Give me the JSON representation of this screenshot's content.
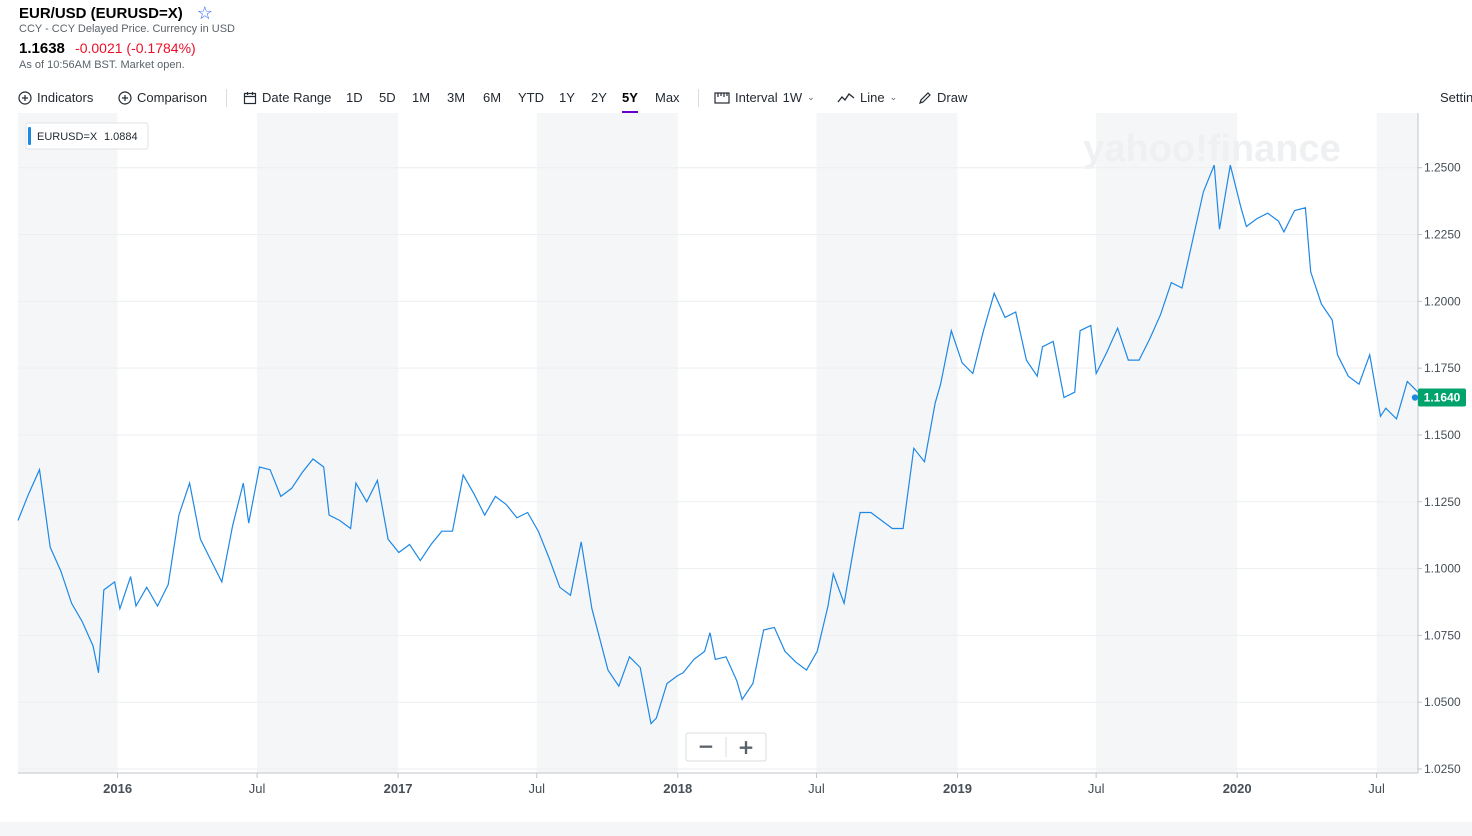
{
  "header": {
    "title": "EUR/USD (EURUSD=X)",
    "subtitle": "CCY - CCY Delayed Price. Currency in USD",
    "price": "1.1638",
    "change": "-0.0021 (-0.1784%)",
    "as_of": "As of 10:56AM BST. Market open."
  },
  "toolbar": {
    "indicators": "Indicators",
    "comparison": "Comparison",
    "date_range": "Date Range",
    "ranges": [
      "1D",
      "5D",
      "1M",
      "3M",
      "6M",
      "YTD",
      "1Y",
      "2Y",
      "5Y",
      "Max"
    ],
    "active_range": "5Y",
    "interval_label": "Interval",
    "interval_value": "1W",
    "chart_type": "Line",
    "draw": "Draw",
    "settings": "Settings"
  },
  "colors": {
    "line": "#1e88e5",
    "last_price": "#00a36c",
    "negative": "#eb0f29",
    "active_tab": "#6001d2"
  },
  "zoom": {
    "minus": "−",
    "plus": "+"
  },
  "chart_data": {
    "type": "line",
    "watermark": "yahoo!finance",
    "legend": {
      "symbol": "EURUSD=X",
      "value": "1.0884",
      "position": "top-left"
    },
    "last_label": "1.1640",
    "ylim": [
      1.025,
      1.26
    ],
    "y_ticks": [
      "1.2500",
      "1.2250",
      "1.2000",
      "1.1750",
      "1.1500",
      "1.1250",
      "1.1000",
      "1.0750",
      "1.0500",
      "1.0250"
    ],
    "x_labels": [
      "2016",
      "Jul",
      "2017",
      "Jul",
      "2018",
      "Jul",
      "2019",
      "Jul",
      "2020",
      "Jul"
    ],
    "x_start": "2015-08-24",
    "x_end": "2020-08-24",
    "grid": true,
    "series": [
      {
        "values": [
          [
            "2015-08-24",
            1.118
          ],
          [
            "2015-09-07",
            1.128
          ],
          [
            "2015-09-21",
            1.137
          ],
          [
            "2015-10-05",
            1.108
          ],
          [
            "2015-10-19",
            1.099
          ],
          [
            "2015-11-02",
            1.087
          ],
          [
            "2015-11-16",
            1.08
          ],
          [
            "2015-11-30",
            1.071
          ],
          [
            "2015-12-07",
            1.061
          ],
          [
            "2015-12-14",
            1.092
          ],
          [
            "2015-12-28",
            1.095
          ],
          [
            "2016-01-04",
            1.085
          ],
          [
            "2016-01-18",
            1.097
          ],
          [
            "2016-01-25",
            1.086
          ],
          [
            "2016-02-08",
            1.093
          ],
          [
            "2016-02-22",
            1.086
          ],
          [
            "2016-03-07",
            1.094
          ],
          [
            "2016-03-21",
            1.12
          ],
          [
            "2016-04-04",
            1.132
          ],
          [
            "2016-04-18",
            1.111
          ],
          [
            "2016-05-02",
            1.103
          ],
          [
            "2016-05-16",
            1.095
          ],
          [
            "2016-05-30",
            1.116
          ],
          [
            "2016-06-13",
            1.132
          ],
          [
            "2016-06-20",
            1.117
          ],
          [
            "2016-07-04",
            1.138
          ],
          [
            "2016-07-18",
            1.137
          ],
          [
            "2016-08-01",
            1.127
          ],
          [
            "2016-08-15",
            1.13
          ],
          [
            "2016-08-29",
            1.136
          ],
          [
            "2016-09-12",
            1.141
          ],
          [
            "2016-09-26",
            1.138
          ],
          [
            "2016-10-03",
            1.12
          ],
          [
            "2016-10-17",
            1.118
          ],
          [
            "2016-10-31",
            1.115
          ],
          [
            "2016-11-07",
            1.132
          ],
          [
            "2016-11-21",
            1.125
          ],
          [
            "2016-12-05",
            1.133
          ],
          [
            "2016-12-19",
            1.111
          ],
          [
            "2017-01-02",
            1.106
          ],
          [
            "2017-01-16",
            1.109
          ],
          [
            "2017-01-30",
            1.103
          ],
          [
            "2017-02-13",
            1.109
          ],
          [
            "2017-02-27",
            1.114
          ],
          [
            "2017-03-13",
            1.114
          ],
          [
            "2017-03-27",
            1.135
          ],
          [
            "2017-04-10",
            1.128
          ],
          [
            "2017-04-24",
            1.12
          ],
          [
            "2017-05-08",
            1.127
          ],
          [
            "2017-05-22",
            1.124
          ],
          [
            "2017-06-05",
            1.119
          ],
          [
            "2017-06-19",
            1.121
          ],
          [
            "2017-07-03",
            1.114
          ],
          [
            "2017-07-17",
            1.104
          ],
          [
            "2017-07-31",
            1.093
          ],
          [
            "2017-08-14",
            1.09
          ],
          [
            "2017-08-28",
            1.11
          ],
          [
            "2017-09-11",
            1.085
          ],
          [
            "2017-10-02",
            1.062
          ],
          [
            "2017-10-16",
            1.056
          ],
          [
            "2017-10-30",
            1.067
          ],
          [
            "2017-11-13",
            1.063
          ],
          [
            "2017-11-27",
            1.042
          ],
          [
            "2017-12-04",
            1.044
          ],
          [
            "2017-12-18",
            1.057
          ],
          [
            "2018-01-01",
            1.06
          ],
          [
            "2018-01-08",
            1.061
          ],
          [
            "2018-01-22",
            1.066
          ],
          [
            "2018-02-05",
            1.069
          ],
          [
            "2018-02-12",
            1.076
          ],
          [
            "2018-02-19",
            1.066
          ],
          [
            "2018-03-05",
            1.067
          ],
          [
            "2018-03-19",
            1.058
          ],
          [
            "2018-03-26",
            1.051
          ],
          [
            "2018-04-09",
            1.057
          ],
          [
            "2018-04-23",
            1.077
          ],
          [
            "2018-05-07",
            1.078
          ],
          [
            "2018-05-21",
            1.069
          ],
          [
            "2018-06-04",
            1.065
          ],
          [
            "2018-06-18",
            1.062
          ],
          [
            "2018-07-02",
            1.069
          ],
          [
            "2018-07-16",
            1.086
          ],
          [
            "2018-07-23",
            1.098
          ],
          [
            "2018-08-06",
            1.087
          ],
          [
            "2018-08-20",
            1.11
          ],
          [
            "2018-08-27",
            1.121
          ],
          [
            "2018-09-10",
            1.121
          ],
          [
            "2018-09-24",
            1.118
          ],
          [
            "2018-10-08",
            1.115
          ],
          [
            "2018-10-22",
            1.115
          ],
          [
            "2018-11-05",
            1.145
          ],
          [
            "2018-11-19",
            1.14
          ],
          [
            "2018-12-03",
            1.162
          ],
          [
            "2018-12-10",
            1.169
          ],
          [
            "2018-12-24",
            1.189
          ],
          [
            "2019-01-07",
            1.177
          ],
          [
            "2019-01-21",
            1.173
          ],
          [
            "2019-02-04",
            1.189
          ],
          [
            "2019-02-18",
            1.203
          ],
          [
            "2019-03-04",
            1.194
          ],
          [
            "2019-03-18",
            1.196
          ],
          [
            "2019-04-01",
            1.178
          ],
          [
            "2019-04-15",
            1.172
          ],
          [
            "2019-04-22",
            1.183
          ],
          [
            "2019-05-06",
            1.185
          ],
          [
            "2019-05-20",
            1.164
          ],
          [
            "2019-06-03",
            1.166
          ],
          [
            "2019-06-10",
            1.189
          ],
          [
            "2019-06-24",
            1.191
          ],
          [
            "2019-07-01",
            1.173
          ],
          [
            "2019-07-15",
            1.181
          ],
          [
            "2019-07-29",
            1.19
          ],
          [
            "2019-08-12",
            1.178
          ],
          [
            "2019-08-26",
            1.178
          ],
          [
            "2019-09-09",
            1.186
          ],
          [
            "2019-09-23",
            1.195
          ],
          [
            "2019-10-07",
            1.207
          ],
          [
            "2019-10-21",
            1.205
          ],
          [
            "2019-11-04",
            1.223
          ],
          [
            "2019-11-18",
            1.241
          ],
          [
            "2019-12-02",
            1.251
          ],
          [
            "2019-12-09",
            1.227
          ],
          [
            "2019-12-23",
            1.251
          ],
          [
            "2020-01-06",
            1.235
          ],
          [
            "2020-01-13",
            1.228
          ],
          [
            "2020-01-27",
            1.231
          ],
          [
            "2020-02-10",
            1.233
          ],
          [
            "2020-02-24",
            1.23
          ],
          [
            "2020-03-02",
            1.226
          ],
          [
            "2020-03-16",
            1.234
          ],
          [
            "2020-03-30",
            1.235
          ],
          [
            "2020-04-06",
            1.211
          ],
          [
            "2020-04-20",
            1.199
          ],
          [
            "2020-05-04",
            1.193
          ],
          [
            "2020-05-11",
            1.18
          ],
          [
            "2020-05-25",
            1.172
          ],
          [
            "2020-06-08",
            1.169
          ],
          [
            "2020-06-22",
            1.18
          ],
          [
            "2020-07-06",
            1.157
          ],
          [
            "2020-07-13",
            1.16
          ],
          [
            "2020-07-27",
            1.156
          ],
          [
            "2020-08-10",
            1.17
          ],
          [
            "2020-08-24",
            1.166
          ]
        ]
      }
    ]
  }
}
